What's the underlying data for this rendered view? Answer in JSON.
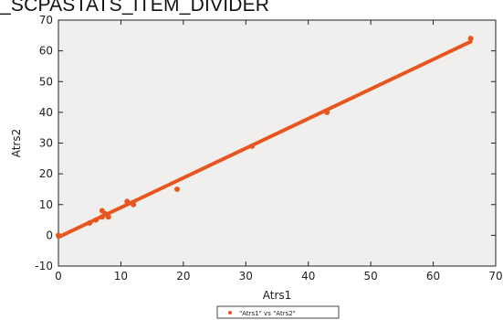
{
  "banner_text": "_SCPASTATS_ITEM_DIVIDER",
  "colors": {
    "plot_bg": "#f1efed",
    "series": "#e8561f",
    "fit": "#e8561f"
  },
  "chart_data": {
    "type": "scatter",
    "title": "",
    "xlabel": "Atrs1",
    "ylabel": "Atrs2",
    "xlim": [
      0,
      70
    ],
    "ylim": [
      -10,
      70
    ],
    "xticks": [
      0,
      10,
      20,
      30,
      40,
      50,
      60,
      70
    ],
    "yticks": [
      -10,
      0,
      10,
      20,
      30,
      40,
      50,
      60,
      70
    ],
    "grid": false,
    "legend_position": "bottom-center",
    "series": [
      {
        "name": "\"Atrs1\" vs \"Atrs2\"",
        "x": [
          0,
          5,
          6,
          7,
          7,
          7.5,
          8,
          11,
          12,
          19,
          31,
          43,
          66
        ],
        "y": [
          0,
          4,
          5,
          8,
          6,
          7,
          6,
          11,
          10,
          15,
          29,
          40,
          64
        ]
      }
    ],
    "fit_line": {
      "x": [
        0,
        66
      ],
      "y": [
        -0.6,
        63
      ]
    }
  }
}
